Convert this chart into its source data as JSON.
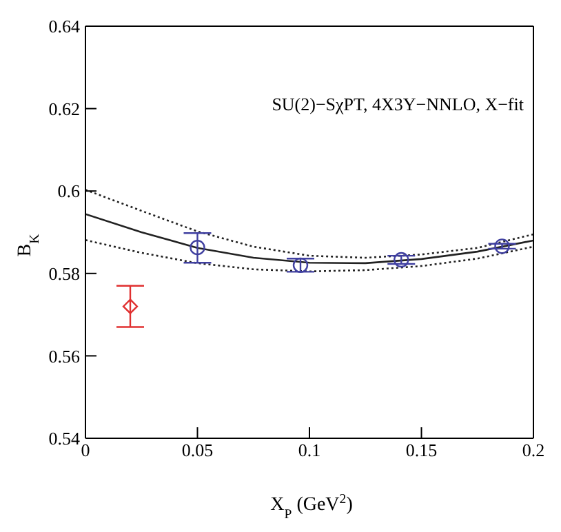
{
  "chart_data": {
    "type": "scatter",
    "xlabel": "X$_{P}$ (GeV$^{2}$)",
    "ylabel": "B$_{K}$",
    "xlim": [
      0,
      0.2
    ],
    "xticks": [
      0,
      0.05,
      0.1,
      0.15,
      0.2
    ],
    "ylim": [
      0.54,
      0.64
    ],
    "yticks": [
      0.54,
      0.56,
      0.58,
      0.6,
      0.62,
      0.64
    ],
    "annotations": [
      "SU(2)−SχPT, 4X3Y−NNLO, X−fit"
    ],
    "series": [
      {
        "type": "line",
        "color": "#222222",
        "line_style": "solid",
        "marker": "none",
        "x": [
          0,
          0.025,
          0.05,
          0.075,
          0.1,
          0.125,
          0.15,
          0.175,
          0.2
        ],
        "values": [
          0.5944,
          0.59,
          0.5862,
          0.5838,
          0.5826,
          0.5825,
          0.5835,
          0.5853,
          0.588
        ]
      },
      {
        "type": "line",
        "color": "#222222",
        "line_style": "dotted",
        "marker": "none",
        "x": [
          0,
          0.025,
          0.05,
          0.075,
          0.1,
          0.125,
          0.15,
          0.175,
          0.2
        ],
        "values": [
          0.5881,
          0.585,
          0.5825,
          0.581,
          0.5805,
          0.5808,
          0.5818,
          0.5836,
          0.5865
        ]
      },
      {
        "type": "line",
        "color": "#222222",
        "line_style": "dotted",
        "marker": "none",
        "x": [
          0,
          0.025,
          0.05,
          0.075,
          0.1,
          0.125,
          0.15,
          0.175,
          0.2
        ],
        "values": [
          0.6003,
          0.5952,
          0.5902,
          0.5865,
          0.5843,
          0.5838,
          0.5846,
          0.5862,
          0.5895
        ]
      },
      {
        "color": "#4040a0",
        "marker": "circle",
        "x": [
          0.05,
          0.096,
          0.141,
          0.186
        ],
        "values": [
          0.5863,
          0.582,
          0.5833,
          0.5866
        ],
        "errors": [
          [
            0.5826,
            0.5898
          ],
          [
            0.5804,
            0.5836
          ],
          [
            0.5823,
            0.5843
          ],
          [
            0.586,
            0.5872
          ]
        ]
      },
      {
        "color": "#e03030",
        "marker": "diamond",
        "x": [
          0.02
        ],
        "values": [
          0.572
        ],
        "errors": [
          [
            0.567,
            0.577
          ]
        ]
      }
    ]
  }
}
